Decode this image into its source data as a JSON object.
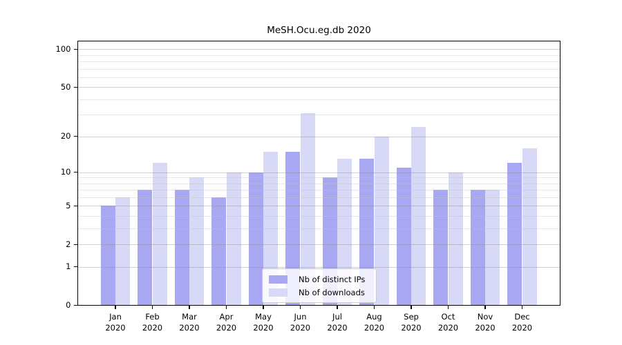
{
  "title": {
    "text": "MeSH.Ocu.eg.db 2020"
  },
  "legend": {
    "items": [
      {
        "label": "Nb of distinct IPs",
        "color": "#a8a8f2"
      },
      {
        "label": "Nb of downloads",
        "color": "#d8d8f7"
      }
    ]
  },
  "x_tick_labels": [
    {
      "month": "Jan",
      "year": "2020"
    },
    {
      "month": "Feb",
      "year": "2020"
    },
    {
      "month": "Mar",
      "year": "2020"
    },
    {
      "month": "Apr",
      "year": "2020"
    },
    {
      "month": "May",
      "year": "2020"
    },
    {
      "month": "Jun",
      "year": "2020"
    },
    {
      "month": "Jul",
      "year": "2020"
    },
    {
      "month": "Aug",
      "year": "2020"
    },
    {
      "month": "Sep",
      "year": "2020"
    },
    {
      "month": "Oct",
      "year": "2020"
    },
    {
      "month": "Nov",
      "year": "2020"
    },
    {
      "month": "Dec",
      "year": "2020"
    }
  ],
  "chart_data": {
    "type": "bar",
    "title": "MeSH.Ocu.eg.db 2020",
    "categories": [
      "Jan 2020",
      "Feb 2020",
      "Mar 2020",
      "Apr 2020",
      "May 2020",
      "Jun 2020",
      "Jul 2020",
      "Aug 2020",
      "Sep 2020",
      "Oct 2020",
      "Nov 2020",
      "Dec 2020"
    ],
    "series": [
      {
        "name": "Nb of distinct IPs",
        "color": "#a8a8f2",
        "values": [
          5,
          7,
          7,
          6,
          10,
          15,
          9,
          13,
          11,
          7,
          7,
          12
        ]
      },
      {
        "name": "Nb of downloads",
        "color": "#d8d8f7",
        "values": [
          6,
          12,
          9,
          10,
          15,
          31,
          13,
          20,
          24,
          10,
          7,
          16
        ]
      }
    ],
    "yscale": "log1p",
    "ylim": [
      0,
      116
    ],
    "y_ticks": [
      100,
      50,
      20,
      10,
      5,
      2,
      1,
      0
    ],
    "y_major_gridlines": [
      1,
      2,
      5,
      10,
      20,
      50,
      100
    ],
    "y_minor_gridlines": [
      3,
      4,
      6,
      7,
      8,
      9,
      30,
      40,
      60,
      70,
      80,
      90
    ],
    "grid": true,
    "legend_position": "inside lower-center",
    "xlabel": "",
    "ylabel": ""
  }
}
